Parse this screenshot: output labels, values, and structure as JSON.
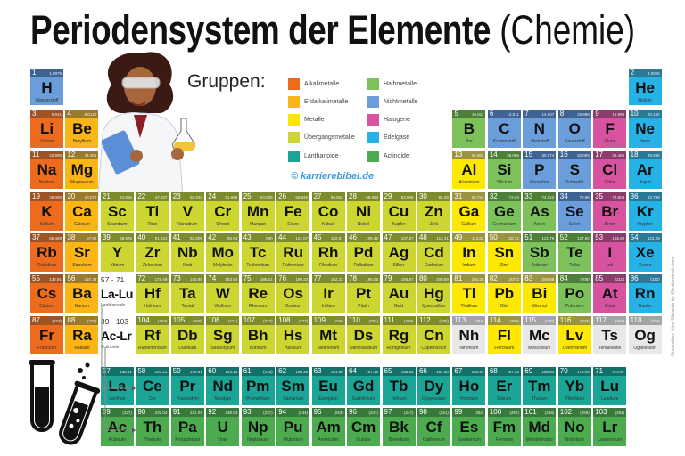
{
  "title": {
    "bold": "Periodensystem der Elemente",
    "light": "(Chemie)"
  },
  "legend": {
    "heading": "Gruppen:",
    "items": [
      {
        "key": "a",
        "label": "Alkalimetalle",
        "color": "#ec6b1c",
        "strip": "#9c5424"
      },
      {
        "key": "e",
        "label": "Erdalkalimetalle",
        "color": "#fdb515",
        "strip": "#9a7a2c"
      },
      {
        "key": "m",
        "label": "Metalle",
        "color": "#fde800",
        "strip": "#9a9440"
      },
      {
        "key": "t",
        "label": "Übergangsmetalle",
        "color": "#cdd630",
        "strip": "#7d8a2e"
      },
      {
        "key": "l",
        "label": "Lanthanoide",
        "color": "#1ba597",
        "strip": "#14716a"
      },
      {
        "key": "h",
        "label": "Halbmetalle",
        "color": "#7cc15a",
        "strip": "#4d7f38"
      },
      {
        "key": "n",
        "label": "Nichtmetalle",
        "color": "#6a9edb",
        "strip": "#3f6494"
      },
      {
        "key": "x",
        "label": "Halogene",
        "color": "#d7529f",
        "strip": "#8c3c6a"
      },
      {
        "key": "g",
        "label": "Edelgase",
        "color": "#25b2e6",
        "strip": "#2a7997"
      },
      {
        "key": "c",
        "label": "Actinoide",
        "color": "#4cab4f",
        "strip": "#387a3c"
      }
    ],
    "unknown": {
      "color": "#e8e8e8",
      "strip": "#a3a3a3"
    }
  },
  "copyright": "© karrierebibel.de",
  "credit": "Illustration: Aleo Minardo by Shutterstock.com",
  "placeholders": [
    {
      "range": "57 - 71",
      "symbol": "La-Lu",
      "name": "Lanthanoide"
    },
    {
      "range": "89 - 103",
      "symbol": "Ac-Lr",
      "name": "Actinoide"
    }
  ],
  "elements": [
    {
      "n": 1,
      "s": "H",
      "name": "Wasserstoff",
      "m": "1.0079",
      "c": "n",
      "period": 1,
      "group": 1
    },
    {
      "n": 2,
      "s": "He",
      "name": "Helium",
      "m": "4.0026",
      "c": "g",
      "period": 1,
      "group": 18
    },
    {
      "n": 3,
      "s": "Li",
      "name": "Lithium",
      "m": "6.941",
      "c": "a",
      "period": 2,
      "group": 1
    },
    {
      "n": 4,
      "s": "Be",
      "name": "Beryllium",
      "m": "9.0122",
      "c": "e",
      "period": 2,
      "group": 2
    },
    {
      "n": 5,
      "s": "B",
      "name": "Bor",
      "m": "10.811",
      "c": "h",
      "period": 2,
      "group": 13
    },
    {
      "n": 6,
      "s": "C",
      "name": "Kohlenstoff",
      "m": "12.011",
      "c": "n",
      "period": 2,
      "group": 14
    },
    {
      "n": 7,
      "s": "N",
      "name": "Stickstoff",
      "m": "14.007",
      "c": "n",
      "period": 2,
      "group": 15
    },
    {
      "n": 8,
      "s": "O",
      "name": "Sauerstoff",
      "m": "15.999",
      "c": "n",
      "period": 2,
      "group": 16
    },
    {
      "n": 9,
      "s": "F",
      "name": "Fluor",
      "m": "18.998",
      "c": "x",
      "period": 2,
      "group": 17
    },
    {
      "n": 10,
      "s": "Ne",
      "name": "Neon",
      "m": "20.180",
      "c": "g",
      "period": 2,
      "group": 18
    },
    {
      "n": 11,
      "s": "Na",
      "name": "Natrium",
      "m": "22.990",
      "c": "a",
      "period": 3,
      "group": 1
    },
    {
      "n": 12,
      "s": "Mg",
      "name": "Magnesium",
      "m": "24.305",
      "c": "e",
      "period": 3,
      "group": 2
    },
    {
      "n": 13,
      "s": "Al",
      "name": "Aluminium",
      "m": "26.982",
      "c": "m",
      "period": 3,
      "group": 13
    },
    {
      "n": 14,
      "s": "Si",
      "name": "Silicium",
      "m": "28.086",
      "c": "h",
      "period": 3,
      "group": 14
    },
    {
      "n": 15,
      "s": "P",
      "name": "Phosphor",
      "m": "30.974",
      "c": "n",
      "period": 3,
      "group": 15
    },
    {
      "n": 16,
      "s": "S",
      "name": "Schwefel",
      "m": "32.065",
      "c": "n",
      "period": 3,
      "group": 16
    },
    {
      "n": 17,
      "s": "Cl",
      "name": "Chlor",
      "m": "35.453",
      "c": "x",
      "period": 3,
      "group": 17
    },
    {
      "n": 18,
      "s": "Ar",
      "name": "Argon",
      "m": "39.948",
      "c": "g",
      "period": 3,
      "group": 18
    },
    {
      "n": 19,
      "s": "K",
      "name": "Kalium",
      "m": "39.098",
      "c": "a",
      "period": 4,
      "group": 1
    },
    {
      "n": 20,
      "s": "Ca",
      "name": "Calcium",
      "m": "40.078",
      "c": "e",
      "period": 4,
      "group": 2
    },
    {
      "n": 21,
      "s": "Sc",
      "name": "Scandium",
      "m": "44.956",
      "c": "t",
      "period": 4,
      "group": 3
    },
    {
      "n": 22,
      "s": "Ti",
      "name": "Titan",
      "m": "47.867",
      "c": "t",
      "period": 4,
      "group": 4
    },
    {
      "n": 23,
      "s": "V",
      "name": "Vanadium",
      "m": "50.942",
      "c": "t",
      "period": 4,
      "group": 5
    },
    {
      "n": 24,
      "s": "Cr",
      "name": "Chrom",
      "m": "51.996",
      "c": "t",
      "period": 4,
      "group": 6
    },
    {
      "n": 25,
      "s": "Mn",
      "name": "Mangan",
      "m": "54.938",
      "c": "t",
      "period": 4,
      "group": 7
    },
    {
      "n": 26,
      "s": "Fe",
      "name": "Eisen",
      "m": "55.845",
      "c": "t",
      "period": 4,
      "group": 8
    },
    {
      "n": 27,
      "s": "Co",
      "name": "Kobalt",
      "m": "58.933",
      "c": "t",
      "period": 4,
      "group": 9
    },
    {
      "n": 28,
      "s": "Ni",
      "name": "Nickel",
      "m": "58.693",
      "c": "t",
      "period": 4,
      "group": 10
    },
    {
      "n": 29,
      "s": "Cu",
      "name": "Kupfer",
      "m": "63.546",
      "c": "t",
      "period": 4,
      "group": 11
    },
    {
      "n": 30,
      "s": "Zn",
      "name": "Zink",
      "m": "65.39",
      "c": "t",
      "period": 4,
      "group": 12
    },
    {
      "n": 31,
      "s": "Ga",
      "name": "Gallium",
      "m": "69.723",
      "c": "m",
      "period": 4,
      "group": 13
    },
    {
      "n": 32,
      "s": "Ge",
      "name": "Germanium",
      "m": "72.64",
      "c": "h",
      "period": 4,
      "group": 14
    },
    {
      "n": 33,
      "s": "As",
      "name": "Arsen",
      "m": "74.922",
      "c": "h",
      "period": 4,
      "group": 15
    },
    {
      "n": 34,
      "s": "Se",
      "name": "Selen",
      "m": "78.96",
      "c": "n",
      "period": 4,
      "group": 16
    },
    {
      "n": 35,
      "s": "Br",
      "name": "Brom",
      "m": "79.904",
      "c": "x",
      "period": 4,
      "group": 17
    },
    {
      "n": 36,
      "s": "Kr",
      "name": "Krypton",
      "m": "83.798",
      "c": "g",
      "period": 4,
      "group": 18
    },
    {
      "n": 37,
      "s": "Rb",
      "name": "Rubidium",
      "m": "85.468",
      "c": "a",
      "period": 5,
      "group": 1
    },
    {
      "n": 38,
      "s": "Sr",
      "name": "Strontium",
      "m": "87.62",
      "c": "e",
      "period": 5,
      "group": 2
    },
    {
      "n": 39,
      "s": "Y",
      "name": "Yttrium",
      "m": "88.906",
      "c": "t",
      "period": 5,
      "group": 3
    },
    {
      "n": 40,
      "s": "Zr",
      "name": "Zirkonium",
      "m": "91.224",
      "c": "t",
      "period": 5,
      "group": 4
    },
    {
      "n": 41,
      "s": "Nb",
      "name": "Niob",
      "m": "92.906",
      "c": "t",
      "period": 5,
      "group": 5
    },
    {
      "n": 42,
      "s": "Mo",
      "name": "Molybdän",
      "m": "95.94",
      "c": "t",
      "period": 5,
      "group": 6
    },
    {
      "n": 43,
      "s": "Tc",
      "name": "Technetium",
      "m": "(98)",
      "c": "t",
      "period": 5,
      "group": 7
    },
    {
      "n": 44,
      "s": "Ru",
      "name": "Ruthenium",
      "m": "101.07",
      "c": "t",
      "period": 5,
      "group": 8
    },
    {
      "n": 45,
      "s": "Rh",
      "name": "Rhodium",
      "m": "102.91",
      "c": "t",
      "period": 5,
      "group": 9
    },
    {
      "n": 46,
      "s": "Pd",
      "name": "Palladium",
      "m": "106.42",
      "c": "t",
      "period": 5,
      "group": 10
    },
    {
      "n": 47,
      "s": "Ag",
      "name": "Silber",
      "m": "107.87",
      "c": "t",
      "period": 5,
      "group": 11
    },
    {
      "n": 48,
      "s": "Cd",
      "name": "Cadmium",
      "m": "112.41",
      "c": "t",
      "period": 5,
      "group": 12
    },
    {
      "n": 49,
      "s": "In",
      "name": "Indium",
      "m": "114.82",
      "c": "m",
      "period": 5,
      "group": 13
    },
    {
      "n": 50,
      "s": "Sn",
      "name": "Zinn",
      "m": "118.71",
      "c": "m",
      "period": 5,
      "group": 14
    },
    {
      "n": 51,
      "s": "Sb",
      "name": "Antimon",
      "m": "121.76",
      "c": "h",
      "period": 5,
      "group": 15
    },
    {
      "n": 52,
      "s": "Te",
      "name": "Tellur",
      "m": "127.60",
      "c": "h",
      "period": 5,
      "group": 16
    },
    {
      "n": 53,
      "s": "I",
      "name": "Iod",
      "m": "126.90",
      "c": "x",
      "period": 5,
      "group": 17
    },
    {
      "n": 54,
      "s": "Xe",
      "name": "Xenon",
      "m": "131.29",
      "c": "g",
      "period": 5,
      "group": 18
    },
    {
      "n": 55,
      "s": "Cs",
      "name": "Cäsium",
      "m": "132.91",
      "c": "a",
      "period": 6,
      "group": 1
    },
    {
      "n": 56,
      "s": "Ba",
      "name": "Barium",
      "m": "137.33",
      "c": "e",
      "period": 6,
      "group": 2
    },
    {
      "n": 72,
      "s": "Hf",
      "name": "Hafnium",
      "m": "178.49",
      "c": "t",
      "period": 6,
      "group": 4
    },
    {
      "n": 73,
      "s": "Ta",
      "name": "Tantal",
      "m": "180.95",
      "c": "t",
      "period": 6,
      "group": 5
    },
    {
      "n": 74,
      "s": "W",
      "name": "Wolfram",
      "m": "183.84",
      "c": "t",
      "period": 6,
      "group": 6
    },
    {
      "n": 75,
      "s": "Re",
      "name": "Rhenium",
      "m": "186.21",
      "c": "t",
      "period": 6,
      "group": 7
    },
    {
      "n": 76,
      "s": "Os",
      "name": "Osmium",
      "m": "190.23",
      "c": "t",
      "period": 6,
      "group": 8
    },
    {
      "n": 77,
      "s": "Ir",
      "name": "Iridium",
      "m": "192.22",
      "c": "t",
      "period": 6,
      "group": 9
    },
    {
      "n": 78,
      "s": "Pt",
      "name": "Platin",
      "m": "195.08",
      "c": "t",
      "period": 6,
      "group": 10
    },
    {
      "n": 79,
      "s": "Au",
      "name": "Gold",
      "m": "196.97",
      "c": "t",
      "period": 6,
      "group": 11
    },
    {
      "n": 80,
      "s": "Hg",
      "name": "Quecksilber",
      "m": "200.59",
      "c": "t",
      "period": 6,
      "group": 12
    },
    {
      "n": 81,
      "s": "Tl",
      "name": "Thallium",
      "m": "204.38",
      "c": "m",
      "period": 6,
      "group": 13
    },
    {
      "n": 82,
      "s": "Pb",
      "name": "Blei",
      "m": "207.2",
      "c": "m",
      "period": 6,
      "group": 14
    },
    {
      "n": 83,
      "s": "Bi",
      "name": "Wismut",
      "m": "208.98",
      "c": "m",
      "period": 6,
      "group": 15
    },
    {
      "n": 84,
      "s": "Po",
      "name": "Polonium",
      "m": "(209)",
      "c": "h",
      "period": 6,
      "group": 16
    },
    {
      "n": 85,
      "s": "At",
      "name": "Astat",
      "m": "(210)",
      "c": "x",
      "period": 6,
      "group": 17
    },
    {
      "n": 86,
      "s": "Rn",
      "name": "Radon",
      "m": "(222)",
      "c": "g",
      "period": 6,
      "group": 18
    },
    {
      "n": 87,
      "s": "Fr",
      "name": "Francium",
      "m": "(223)",
      "c": "a",
      "period": 7,
      "group": 1
    },
    {
      "n": 88,
      "s": "Ra",
      "name": "Radium",
      "m": "(226)",
      "c": "e",
      "period": 7,
      "group": 2
    },
    {
      "n": 104,
      "s": "Rf",
      "name": "Rutherfordium",
      "m": "(267)",
      "c": "t",
      "period": 7,
      "group": 4
    },
    {
      "n": 105,
      "s": "Db",
      "name": "Dubnium",
      "m": "(268)",
      "c": "t",
      "period": 7,
      "group": 5
    },
    {
      "n": 106,
      "s": "Sg",
      "name": "Seaborgium",
      "m": "(271)",
      "c": "t",
      "period": 7,
      "group": 6
    },
    {
      "n": 107,
      "s": "Bh",
      "name": "Bohrium",
      "m": "(272)",
      "c": "t",
      "period": 7,
      "group": 7
    },
    {
      "n": 108,
      "s": "Hs",
      "name": "Hassium",
      "m": "(277)",
      "c": "t",
      "period": 7,
      "group": 8
    },
    {
      "n": 109,
      "s": "Mt",
      "name": "Meitnerium",
      "m": "(276)",
      "c": "t",
      "period": 7,
      "group": 9
    },
    {
      "n": 110,
      "s": "Ds",
      "name": "Darmstadtium",
      "m": "(281)",
      "c": "t",
      "period": 7,
      "group": 10
    },
    {
      "n": 111,
      "s": "Rg",
      "name": "Röntgenium",
      "m": "(280)",
      "c": "t",
      "period": 7,
      "group": 11
    },
    {
      "n": 112,
      "s": "Cn",
      "name": "Copernicium",
      "m": "(285)",
      "c": "t",
      "period": 7,
      "group": 12
    },
    {
      "n": 113,
      "s": "Nh",
      "name": "Nihonium",
      "m": "(284)",
      "c": "u",
      "period": 7,
      "group": 13
    },
    {
      "n": 114,
      "s": "Fl",
      "name": "Flerovium",
      "m": "(289)",
      "c": "m",
      "period": 7,
      "group": 14
    },
    {
      "n": 115,
      "s": "Mc",
      "name": "Moscovium",
      "m": "(288)",
      "c": "u",
      "period": 7,
      "group": 15
    },
    {
      "n": 116,
      "s": "Lv",
      "name": "Livermorium",
      "m": "(293)",
      "c": "m",
      "period": 7,
      "group": 16
    },
    {
      "n": 117,
      "s": "Ts",
      "name": "Tennessine",
      "m": "(294)",
      "c": "u",
      "period": 7,
      "group": 17
    },
    {
      "n": 118,
      "s": "Og",
      "name": "Oganesson",
      "m": "(294)",
      "c": "u",
      "period": 7,
      "group": 18
    }
  ],
  "lanthanides": [
    {
      "n": 57,
      "s": "La",
      "name": "Lanthan",
      "m": "138.91"
    },
    {
      "n": 58,
      "s": "Ce",
      "name": "Cer",
      "m": "140.12"
    },
    {
      "n": 59,
      "s": "Pr",
      "name": "Praseodym",
      "m": "140.91"
    },
    {
      "n": 60,
      "s": "Nd",
      "name": "Neodym",
      "m": "144.24"
    },
    {
      "n": 61,
      "s": "Pm",
      "name": "Promethium",
      "m": "(145)"
    },
    {
      "n": 62,
      "s": "Sm",
      "name": "Samarium",
      "m": "150.36"
    },
    {
      "n": 63,
      "s": "Eu",
      "name": "Europium",
      "m": "151.96"
    },
    {
      "n": 64,
      "s": "Gd",
      "name": "Gadolinium",
      "m": "157.25"
    },
    {
      "n": 65,
      "s": "Tb",
      "name": "Terbium",
      "m": "158.93"
    },
    {
      "n": 66,
      "s": "Dy",
      "name": "Dysprosium",
      "m": "162.50"
    },
    {
      "n": 67,
      "s": "Ho",
      "name": "Holmium",
      "m": "164.93"
    },
    {
      "n": 68,
      "s": "Er",
      "name": "Erbium",
      "m": "167.26"
    },
    {
      "n": 69,
      "s": "Tm",
      "name": "Thulium",
      "m": "168.93"
    },
    {
      "n": 70,
      "s": "Yb",
      "name": "Ytterbium",
      "m": "173.05"
    },
    {
      "n": 71,
      "s": "Lu",
      "name": "Lutetium",
      "m": "174.97"
    }
  ],
  "actinides": [
    {
      "n": 89,
      "s": "Ac",
      "name": "Actinium",
      "m": "(227)"
    },
    {
      "n": 90,
      "s": "Th",
      "name": "Thorium",
      "m": "232.04"
    },
    {
      "n": 91,
      "s": "Pa",
      "name": "Protactinium",
      "m": "231.04"
    },
    {
      "n": 92,
      "s": "U",
      "name": "Uran",
      "m": "238.03"
    },
    {
      "n": 93,
      "s": "Np",
      "name": "Neptunium",
      "m": "(237)"
    },
    {
      "n": 94,
      "s": "Pu",
      "name": "Plutonium",
      "m": "(244)"
    },
    {
      "n": 95,
      "s": "Am",
      "name": "Americium",
      "m": "(243)"
    },
    {
      "n": 96,
      "s": "Cm",
      "name": "Curium",
      "m": "(247)"
    },
    {
      "n": 97,
      "s": "Bk",
      "name": "Berkelium",
      "m": "(247)"
    },
    {
      "n": 98,
      "s": "Cf",
      "name": "Californium",
      "m": "(251)"
    },
    {
      "n": 99,
      "s": "Es",
      "name": "Einsteinium",
      "m": "(252)"
    },
    {
      "n": 100,
      "s": "Fm",
      "name": "Fermium",
      "m": "(257)"
    },
    {
      "n": 101,
      "s": "Md",
      "name": "Mendelevium",
      "m": "(258)"
    },
    {
      "n": 102,
      "s": "No",
      "name": "Nobelium",
      "m": "(259)"
    },
    {
      "n": 103,
      "s": "Lr",
      "name": "Lawrencium",
      "m": "(262)"
    }
  ]
}
